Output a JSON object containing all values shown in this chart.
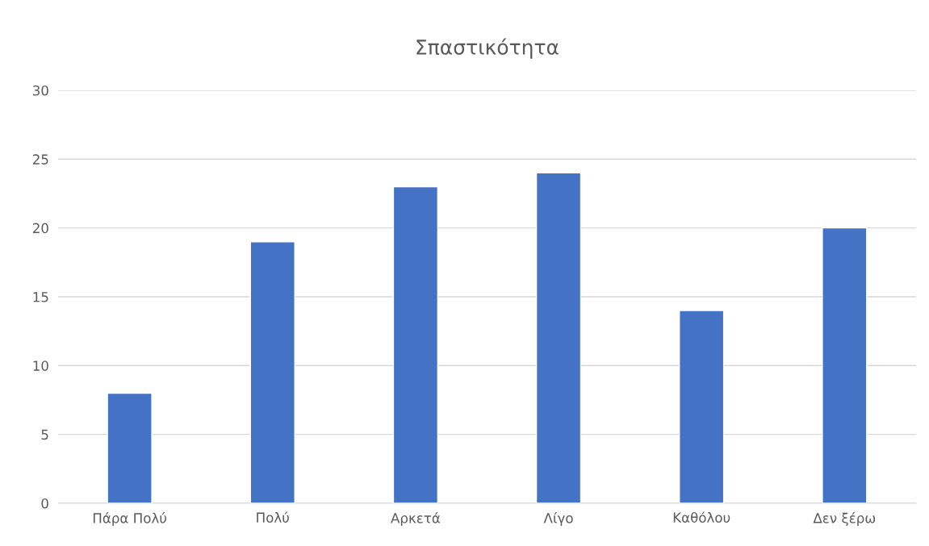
{
  "chart_data": {
    "type": "bar",
    "title": "Σπαστικότητα",
    "categories": [
      "Πάρα Πολύ",
      "Πολύ",
      "Αρκετά",
      "Λίγο",
      "Καθόλου",
      "Δεν ξέρω"
    ],
    "values": [
      8,
      19,
      23,
      24,
      14,
      20
    ],
    "color": "#4472c4",
    "ylim": [
      0,
      30
    ],
    "yticks": [
      0,
      5,
      10,
      15,
      20,
      25,
      30
    ],
    "grid": "y"
  }
}
